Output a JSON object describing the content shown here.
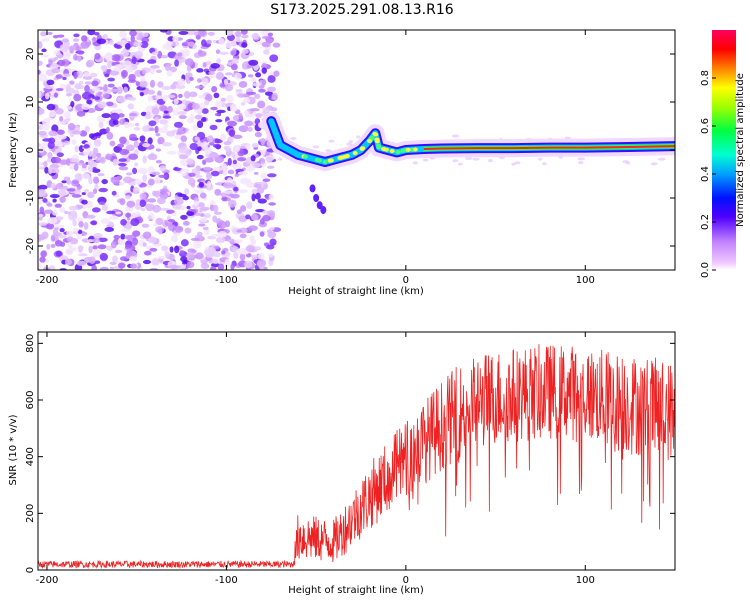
{
  "figure_title": "S173.2025.291.08.13.R16",
  "chart_data": [
    {
      "type": "heatmap",
      "title": "",
      "xlabel": "Height of straight line (km)",
      "ylabel": "Frequency (Hz)",
      "xlim": [
        -205,
        150
      ],
      "ylim": [
        -25,
        25
      ],
      "x_ticks": [
        -200,
        -100,
        0,
        100
      ],
      "y_ticks": [
        -20,
        -10,
        0,
        10,
        20
      ],
      "colorbar": {
        "label": "Normalized spectral amplitude",
        "range": [
          0,
          1
        ],
        "ticks": [
          "0.0",
          "0.2",
          "0.4",
          "0.6",
          "0.8"
        ],
        "colors": [
          "#ffffff",
          "#ff00ff",
          "#5000ff",
          "#0000ff",
          "#00c8ff",
          "#00ff80",
          "#40ff00",
          "#ffff00",
          "#ff8000",
          "#ff0000",
          "#ff0050"
        ]
      },
      "signal_trace": {
        "description_values": "frequency center (Hz) vs height (km)",
        "x": [
          -75,
          -70,
          -65,
          -60,
          -55,
          -50,
          -45,
          -40,
          -35,
          -30,
          -25,
          -20,
          -17,
          -15,
          -10,
          -5,
          0,
          10,
          20,
          40,
          60,
          80,
          100,
          120,
          150
        ],
        "y": [
          6,
          1,
          0,
          -1,
          -1.5,
          -2,
          -2.5,
          -2,
          -1.5,
          -1,
          0,
          2,
          3.5,
          0.5,
          0,
          -0.5,
          0,
          0.2,
          0.3,
          0.4,
          0.4,
          0.5,
          0.5,
          0.6,
          0.8
        ]
      },
      "noise_region_x": [
        -205,
        -72
      ]
    },
    {
      "type": "line",
      "title": "",
      "xlabel": "Height of straight line (km)",
      "ylabel": "SNR (10 * v/v)",
      "xlim": [
        -205,
        150
      ],
      "ylim": [
        0,
        840
      ],
      "x_ticks": [
        -200,
        -100,
        0,
        100
      ],
      "y_ticks": [
        0,
        200,
        400,
        600,
        800
      ],
      "series": [
        {
          "name": "SNR",
          "color": "#ee2222",
          "envelope_x": [
            -205,
            -80,
            -63,
            -60,
            -50,
            -40,
            -30,
            -20,
            -10,
            0,
            10,
            20,
            30,
            40,
            50,
            60,
            70,
            80,
            90,
            100,
            110,
            120,
            130,
            140,
            150
          ],
          "envelope_mean": [
            20,
            20,
            20,
            120,
            110,
            100,
            180,
            260,
            330,
            390,
            450,
            510,
            560,
            590,
            610,
            620,
            625,
            630,
            630,
            620,
            610,
            590,
            580,
            570,
            560
          ],
          "envelope_spread": [
            12,
            12,
            12,
            90,
            80,
            80,
            100,
            120,
            130,
            140,
            150,
            160,
            170,
            170,
            170,
            170,
            170,
            170,
            170,
            170,
            170,
            180,
            180,
            180,
            180
          ]
        }
      ]
    }
  ]
}
